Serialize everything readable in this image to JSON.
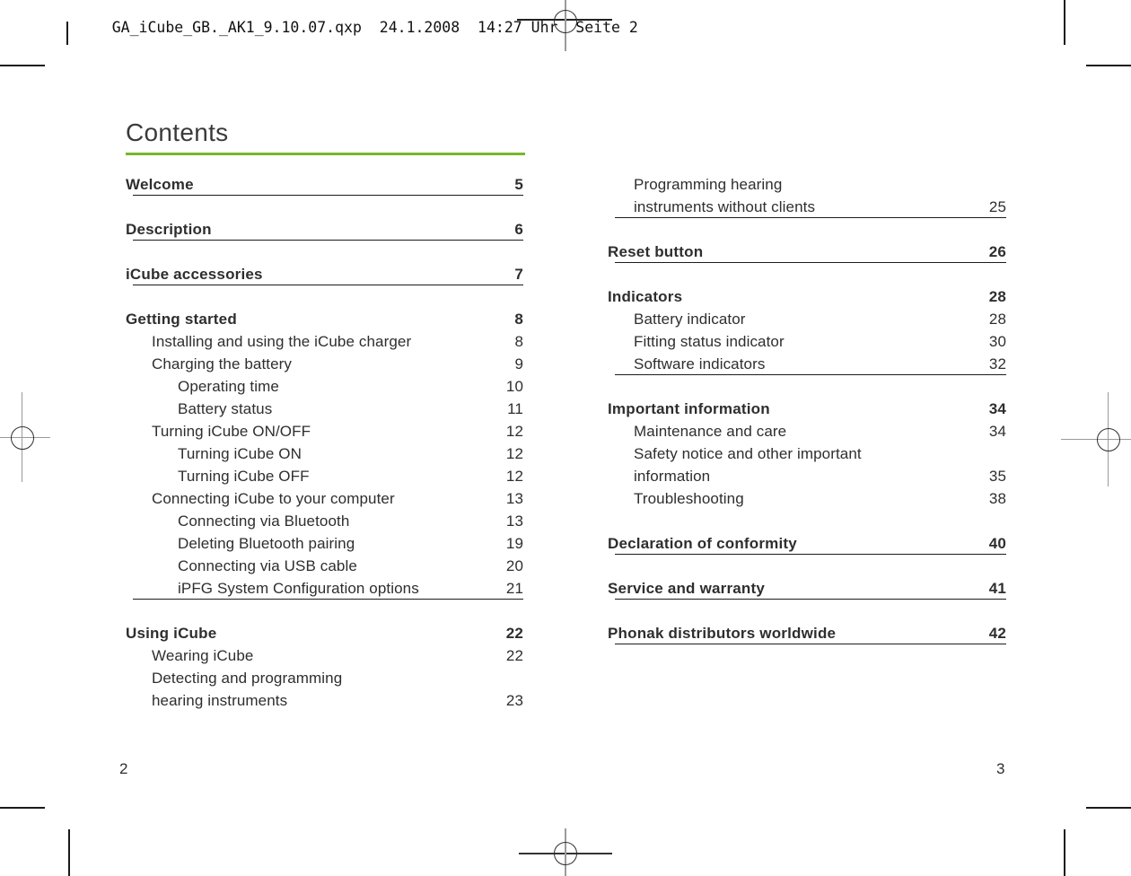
{
  "accent_color": "#76b82a",
  "proof_bar": {
    "text": "GA_iCube_GB._AK1_9.10.07.qxp  24.1.2008  14:27 Uhr  Seite 2"
  },
  "left_page": {
    "title": "Contents",
    "page_number": "2",
    "toc": [
      {
        "label": "Welcome",
        "page": "5",
        "bold": true,
        "indent": 0,
        "rule": true,
        "gap": false
      },
      {
        "label": "Description",
        "page": "6",
        "bold": true,
        "indent": 0,
        "rule": true,
        "gap": true
      },
      {
        "label": "iCube accessories",
        "page": "7",
        "bold": true,
        "indent": 0,
        "rule": true,
        "gap": true
      },
      {
        "label": "Getting started",
        "page": "8",
        "bold": true,
        "indent": 0,
        "rule": false,
        "gap": true
      },
      {
        "label": "Installing and using the iCube charger",
        "page": "8",
        "bold": false,
        "indent": 1,
        "rule": false,
        "gap": false
      },
      {
        "label": "Charging the battery",
        "page": "9",
        "bold": false,
        "indent": 1,
        "rule": false,
        "gap": false
      },
      {
        "label": "Operating time",
        "page": "10",
        "bold": false,
        "indent": 2,
        "rule": false,
        "gap": false
      },
      {
        "label": "Battery status",
        "page": "11",
        "bold": false,
        "indent": 2,
        "rule": false,
        "gap": false
      },
      {
        "label": "Turning iCube ON/OFF",
        "page": "12",
        "bold": false,
        "indent": 1,
        "rule": false,
        "gap": false
      },
      {
        "label": "Turning iCube ON",
        "page": "12",
        "bold": false,
        "indent": 2,
        "rule": false,
        "gap": false
      },
      {
        "label": "Turning iCube OFF",
        "page": "12",
        "bold": false,
        "indent": 2,
        "rule": false,
        "gap": false
      },
      {
        "label": "Connecting iCube to your computer",
        "page": "13",
        "bold": false,
        "indent": 1,
        "rule": false,
        "gap": false
      },
      {
        "label": "Connecting via Bluetooth",
        "page": "13",
        "bold": false,
        "indent": 2,
        "rule": false,
        "gap": false
      },
      {
        "label": "Deleting Bluetooth pairing",
        "page": "19",
        "bold": false,
        "indent": 2,
        "rule": false,
        "gap": false
      },
      {
        "label": "Connecting via USB cable",
        "page": "20",
        "bold": false,
        "indent": 2,
        "rule": false,
        "gap": false
      },
      {
        "label": "iPFG System Configuration options",
        "page": "21",
        "bold": false,
        "indent": 2,
        "rule": true,
        "gap": false
      },
      {
        "label": "Using iCube",
        "page": "22",
        "bold": true,
        "indent": 0,
        "rule": false,
        "gap": true
      },
      {
        "label": "Wearing iCube",
        "page": "22",
        "bold": false,
        "indent": 1,
        "rule": false,
        "gap": false
      },
      {
        "label": "Detecting and programming",
        "page": "",
        "bold": false,
        "indent": 1,
        "rule": false,
        "gap": false
      },
      {
        "label": "hearing instruments",
        "page": "23",
        "bold": false,
        "indent": 1,
        "rule": false,
        "gap": false
      }
    ]
  },
  "right_page": {
    "page_number": "3",
    "toc": [
      {
        "label": "Programming hearing",
        "page": "",
        "bold": false,
        "indent": 1,
        "rule": false,
        "gap": false
      },
      {
        "label": "instruments without clients",
        "page": "25",
        "bold": false,
        "indent": 1,
        "rule": true,
        "gap": false
      },
      {
        "label": "Reset button",
        "page": "26",
        "bold": true,
        "indent": 0,
        "rule": true,
        "gap": true
      },
      {
        "label": "Indicators",
        "page": "28",
        "bold": true,
        "indent": 0,
        "rule": false,
        "gap": true
      },
      {
        "label": "Battery indicator",
        "page": "28",
        "bold": false,
        "indent": 1,
        "rule": false,
        "gap": false
      },
      {
        "label": "Fitting status indicator",
        "page": "30",
        "bold": false,
        "indent": 1,
        "rule": false,
        "gap": false
      },
      {
        "label": "Software indicators",
        "page": "32",
        "bold": false,
        "indent": 1,
        "rule": true,
        "gap": false
      },
      {
        "label": "Important information",
        "page": "34",
        "bold": true,
        "indent": 0,
        "rule": false,
        "gap": true
      },
      {
        "label": "Maintenance and care",
        "page": "34",
        "bold": false,
        "indent": 1,
        "rule": false,
        "gap": false
      },
      {
        "label": "Safety notice and other important",
        "page": "",
        "bold": false,
        "indent": 1,
        "rule": false,
        "gap": false
      },
      {
        "label": "information",
        "page": "35",
        "bold": false,
        "indent": 1,
        "rule": false,
        "gap": false
      },
      {
        "label": "Troubleshooting",
        "page": "38",
        "bold": false,
        "indent": 1,
        "rule": false,
        "gap": false
      },
      {
        "label": "Declaration of conformity",
        "page": "40",
        "bold": true,
        "indent": 0,
        "rule": true,
        "gap": true
      },
      {
        "label": "Service and warranty",
        "page": "41",
        "bold": true,
        "indent": 0,
        "rule": true,
        "gap": true
      },
      {
        "label": "Phonak distributors worldwide",
        "page": "42",
        "bold": true,
        "indent": 0,
        "rule": true,
        "gap": true
      }
    ]
  }
}
